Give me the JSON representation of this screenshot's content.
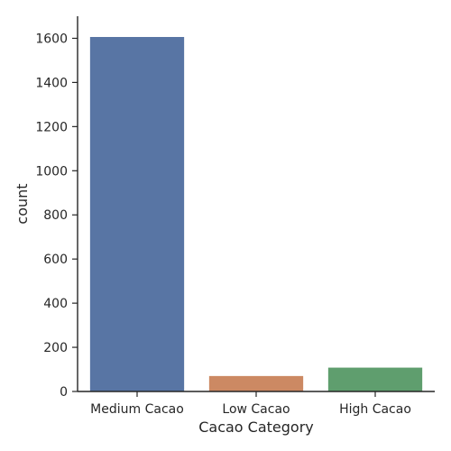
{
  "chart_data": {
    "type": "bar",
    "categories": [
      "Medium Cacao",
      "Low Cacao",
      "High Cacao"
    ],
    "values": [
      1606,
      70,
      108
    ],
    "xlabel": "Cacao Category",
    "ylabel": "count",
    "ylim": [
      0,
      1700
    ],
    "yticks": [
      0,
      200,
      400,
      600,
      800,
      1000,
      1200,
      1400,
      1600
    ],
    "colors": [
      "#5875a4",
      "#cc8963",
      "#5f9e6e"
    ],
    "grid": false,
    "legend": "none"
  }
}
